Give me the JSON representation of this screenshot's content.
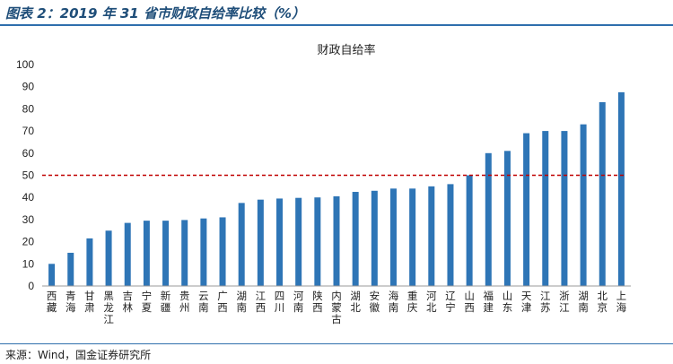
{
  "figure": {
    "title": "图表 2：2019 年 31 省市财政自给率比较（%）",
    "source": "来源：Wind，国金证券研究所"
  },
  "chart_data": {
    "type": "bar",
    "title": "财政自给率",
    "xlabel": "",
    "ylabel": "",
    "ylim": [
      0,
      100
    ],
    "yticks": [
      0,
      10,
      20,
      30,
      40,
      50,
      60,
      70,
      80,
      90,
      100
    ],
    "categories": [
      "西藏",
      "青海",
      "甘肃",
      "黑龙江",
      "吉林",
      "宁夏",
      "新疆",
      "贵州",
      "云南",
      "广西",
      "湖南",
      "江西",
      "四川",
      "河南",
      "陕西",
      "内蒙古",
      "湖北",
      "安徽",
      "海南",
      "重庆",
      "河北",
      "辽宁",
      "山西",
      "福建",
      "山东",
      "天津",
      "江苏",
      "浙江",
      "湖南",
      "北京",
      "上海"
    ],
    "values": [
      10,
      15,
      21.5,
      25,
      28.5,
      29.5,
      29.5,
      29.8,
      30.5,
      31,
      37.5,
      39,
      39.5,
      39.8,
      40,
      40.5,
      42.5,
      43,
      44,
      44,
      45,
      46,
      50,
      60,
      61,
      69,
      70,
      70,
      73,
      83,
      87.5
    ],
    "reference_line": {
      "value": 50,
      "style": "dashed",
      "color": "#c00000"
    },
    "bar_color": "#2e75b6",
    "grid": false
  }
}
